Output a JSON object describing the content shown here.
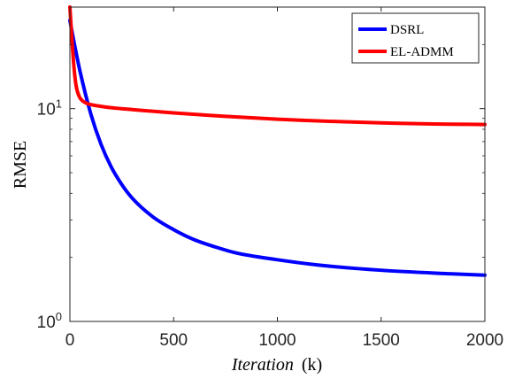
{
  "chart_data": {
    "type": "line",
    "xlabel_italic": "Iteration",
    "xlabel_unit": "(k)",
    "ylabel": "RMSE",
    "xlim": [
      0,
      2000
    ],
    "ylim": [
      1,
      30
    ],
    "yscale": "log",
    "xticks": [
      0,
      500,
      1000,
      1500,
      2000
    ],
    "xtick_labels": [
      "0",
      "500",
      "1000",
      "1500",
      "2000"
    ],
    "yticks": [
      1,
      10
    ],
    "ytick_base": "10",
    "ytick_exponents": [
      "0",
      "1"
    ],
    "legend_position": "top-right",
    "grid": false,
    "series": [
      {
        "name": "DSRL",
        "color": "#0000ff",
        "x": [
          0,
          20,
          50,
          100,
          150,
          200,
          250,
          300,
          400,
          500,
          600,
          700,
          800,
          1000,
          1200,
          1500,
          1800,
          2000
        ],
        "y": [
          26,
          20.5,
          14.8,
          9.5,
          6.8,
          5.3,
          4.4,
          3.8,
          3.1,
          2.7,
          2.42,
          2.24,
          2.1,
          1.95,
          1.84,
          1.74,
          1.68,
          1.65
        ]
      },
      {
        "name": "EL-ADMM",
        "color": "#ff0000",
        "x": [
          0,
          10,
          20,
          30,
          45,
          60,
          80,
          100,
          150,
          200,
          300,
          500,
          750,
          1000,
          1250,
          1500,
          1750,
          2000
        ],
        "y": [
          30,
          21,
          15.5,
          12.8,
          11.4,
          10.9,
          10.6,
          10.45,
          10.25,
          10.1,
          9.9,
          9.55,
          9.2,
          8.92,
          8.72,
          8.57,
          8.47,
          8.42
        ]
      }
    ]
  }
}
